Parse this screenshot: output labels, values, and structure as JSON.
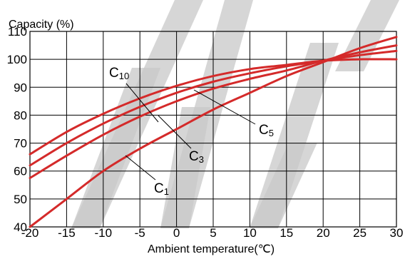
{
  "chart_data": {
    "type": "line",
    "ylabel": "Capacity (%)",
    "xlabel": "Ambient temperature(℃)",
    "xlim": [
      -20,
      30
    ],
    "ylim": [
      40,
      110
    ],
    "x_ticks": [
      -20,
      -15,
      -10,
      -5,
      0,
      5,
      10,
      15,
      20,
      25,
      30
    ],
    "y_ticks": [
      40,
      50,
      60,
      70,
      80,
      90,
      100,
      110
    ],
    "grid": true,
    "colors": {
      "series": "#d42a2a",
      "grid": "#000000",
      "watermark": "#c8c8c8"
    },
    "watermark": "WWW",
    "series": [
      {
        "name": "C10",
        "x": [
          -20,
          -15,
          -10,
          -5,
          0,
          5,
          10,
          15,
          20,
          25,
          30
        ],
        "y": [
          66,
          74,
          80.5,
          86,
          90.5,
          94,
          96.5,
          98,
          99.5,
          100,
          100
        ]
      },
      {
        "name": "C5",
        "x": [
          -20,
          -15,
          -10,
          -5,
          0,
          5,
          10,
          15,
          20,
          25,
          30
        ],
        "y": [
          62,
          70,
          77,
          83,
          88,
          92,
          95,
          97.5,
          99.5,
          101.5,
          103
        ]
      },
      {
        "name": "C3",
        "x": [
          -20,
          -15,
          -10,
          -5,
          0,
          5,
          10,
          15,
          20,
          25,
          30
        ],
        "y": [
          57.5,
          65.5,
          73,
          79.5,
          85,
          89.5,
          93,
          96,
          99.5,
          102.5,
          105
        ]
      },
      {
        "name": "C1",
        "x": [
          -20,
          -15,
          -10,
          -5,
          0,
          5,
          10,
          15,
          20,
          25,
          30
        ],
        "y": [
          40,
          50,
          60,
          68,
          75,
          82,
          88,
          94,
          99,
          104,
          108
        ]
      }
    ]
  }
}
